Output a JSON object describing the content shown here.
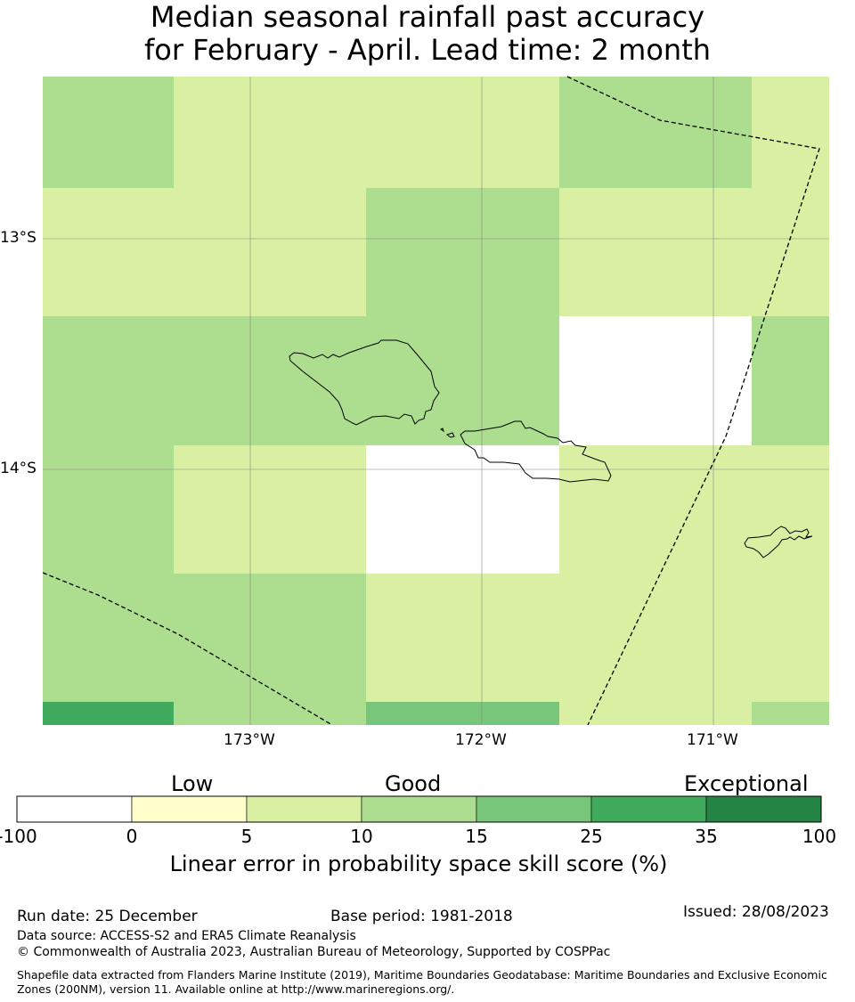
{
  "title": {
    "line1": "Median seasonal rainfall past accuracy",
    "line2": "for February - April. Lead time: 2 month"
  },
  "map": {
    "lat_labels": [
      "13°S",
      "14°S"
    ],
    "lon_labels": [
      "173°W",
      "172°W",
      "171°W"
    ],
    "grid_rows": [
      [
        "10-15",
        "5-10",
        "5-10",
        "10-15",
        "5-10"
      ],
      [
        "5-10",
        "5-10",
        "10-15",
        "5-10",
        "5-10"
      ],
      [
        "10-15",
        "10-15",
        "10-15",
        "none",
        "10-15"
      ],
      [
        "10-15",
        "5-10",
        "none",
        "5-10",
        "5-10"
      ],
      [
        "10-15",
        "10-15",
        "5-10",
        "5-10",
        "5-10"
      ],
      [
        "25-35",
        "10-15",
        "15-25",
        "5-10",
        "10-15"
      ]
    ],
    "colors": {
      "none": "#ffffff",
      "0-5": "#ffffcc",
      "5-10": "#d9f0a3",
      "10-15": "#addd8e",
      "15-25": "#78c679",
      "25-35": "#41ab5d",
      "35-100": "#238443"
    }
  },
  "colorbar": {
    "category_labels": [
      "Low",
      "Good",
      "Exceptional"
    ],
    "ticks": [
      "-100",
      "0",
      "5",
      "10",
      "15",
      "25",
      "35",
      "100"
    ],
    "colors": [
      "#ffffff",
      "#ffffcc",
      "#d9f0a3",
      "#addd8e",
      "#78c679",
      "#41ab5d",
      "#238443"
    ],
    "label": "Linear error in probability space skill score (%)"
  },
  "footer": {
    "run_date": "Run date: 25 December",
    "base_period": "Base period: 1981-2018",
    "issued": "Issued: 28/08/2023",
    "data_source": "Data source: ACCESS-S2 and ERA5 Climate Reanalysis",
    "copyright": "© Commonwealth of Australia 2023, Australian Bureau of Meteorology, Supported by COSPPac",
    "shapefile": "Shapefile data extracted from Flanders Marine Institute (2019), Maritime Boundaries Geodatabase: Maritime Boundaries and Exclusive Economic Zones (200NM), version 11. Available online at http://www.marineregions.org/."
  }
}
